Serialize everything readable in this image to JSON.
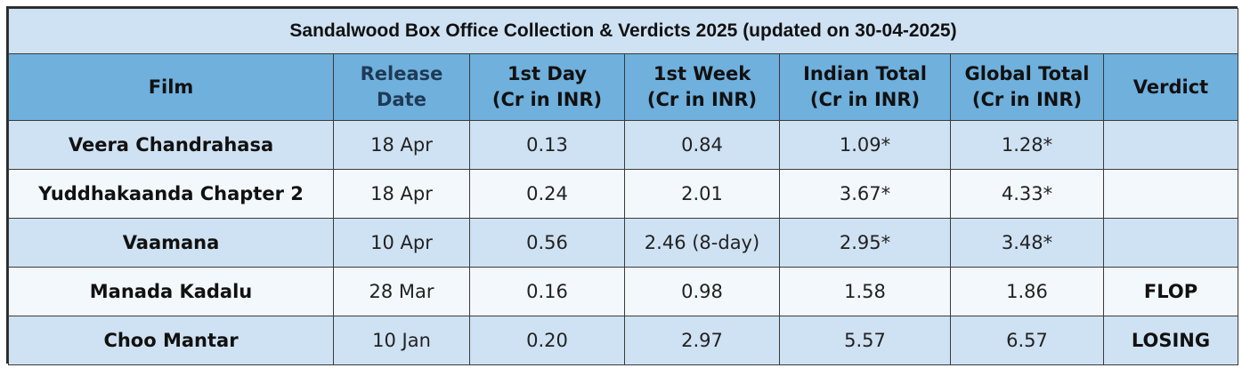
{
  "title": "Sandalwood Box Office Collection & Verdicts 2025 (updated on 30-04-2025)",
  "columns": [
    {
      "line1": "Film",
      "line2": ""
    },
    {
      "line1": "Release",
      "line2": "Date"
    },
    {
      "line1": "1st Day",
      "line2": "(Cr in INR)"
    },
    {
      "line1": "1st Week",
      "line2": "(Cr in INR)"
    },
    {
      "line1": "Indian Total",
      "line2": "(Cr in INR)"
    },
    {
      "line1": "Global Total",
      "line2": "(Cr in INR)"
    },
    {
      "line1": "Verdict",
      "line2": ""
    }
  ],
  "rows": [
    {
      "film": "Veera Chandrahasa",
      "release": "18 Apr",
      "day1": "0.13",
      "week1": "0.84",
      "indian": "1.09*",
      "global": "1.28*",
      "verdict": ""
    },
    {
      "film": "Yuddhakaanda Chapter 2",
      "release": "18 Apr",
      "day1": "0.24",
      "week1": "2.01",
      "indian": "3.67*",
      "global": "4.33*",
      "verdict": ""
    },
    {
      "film": "Vaamana",
      "release": "10 Apr",
      "day1": "0.56",
      "week1": "2.46 (8-day)",
      "indian": "2.95*",
      "global": "3.48*",
      "verdict": ""
    },
    {
      "film": "Manada Kadalu",
      "release": "28 Mar",
      "day1": "0.16",
      "week1": "0.98",
      "indian": "1.58",
      "global": "1.86",
      "verdict": "FLOP"
    },
    {
      "film": "Choo Mantar",
      "release": "10 Jan",
      "day1": "0.20",
      "week1": "2.97",
      "indian": "5.57",
      "global": "6.57",
      "verdict": "LOSING"
    }
  ],
  "colors": {
    "title_bg": "#cfe2f3",
    "header_bg": "#6fb0dd",
    "row_alt_bg": "#cfe2f3",
    "row_plain_bg": "#f3f8fc"
  }
}
